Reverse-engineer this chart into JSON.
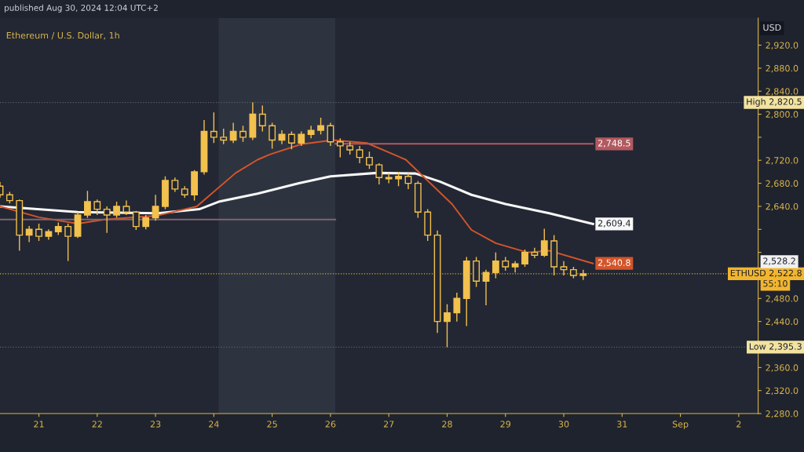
{
  "chart_data": {
    "type": "candlestick",
    "title": "Ethereum / U.S. Dollar, 1h",
    "ylabel": "USD",
    "annotations": [
      "published Aug 30, 2024 12:04 UTC+2",
      "2,528.2",
      "55:10"
    ],
    "color": "#f2c14e",
    "x": [
      "2024-08-20T08:00",
      "2024-08-20T12:00",
      "2024-08-20T16:00",
      "2024-08-20T20:00",
      "2024-08-21T00:00",
      "2024-08-21T04:00",
      "2024-08-21T08:00",
      "2024-08-21T12:00",
      "2024-08-21T16:00",
      "2024-08-21T20:00",
      "2024-08-22T00:00",
      "2024-08-22T04:00",
      "2024-08-22T08:00",
      "2024-08-22T12:00",
      "2024-08-22T16:00",
      "2024-08-22T20:00",
      "2024-08-23T00:00",
      "2024-08-23T04:00",
      "2024-08-23T08:00",
      "2024-08-23T12:00",
      "2024-08-23T16:00",
      "2024-08-23T20:00",
      "2024-08-24T00:00",
      "2024-08-24T04:00",
      "2024-08-24T08:00",
      "2024-08-24T12:00",
      "2024-08-24T16:00",
      "2024-08-24T20:00",
      "2024-08-25T00:00",
      "2024-08-25T04:00",
      "2024-08-25T08:00",
      "2024-08-25T12:00",
      "2024-08-25T16:00",
      "2024-08-25T20:00",
      "2024-08-26T00:00",
      "2024-08-26T04:00",
      "2024-08-26T08:00",
      "2024-08-26T12:00",
      "2024-08-26T16:00",
      "2024-08-26T20:00",
      "2024-08-27T00:00",
      "2024-08-27T04:00",
      "2024-08-27T08:00",
      "2024-08-27T12:00",
      "2024-08-27T16:00",
      "2024-08-27T20:00",
      "2024-08-28T00:00",
      "2024-08-28T04:00",
      "2024-08-28T08:00",
      "2024-08-28T12:00",
      "2024-08-28T16:00",
      "2024-08-28T20:00",
      "2024-08-29T00:00",
      "2024-08-29T04:00",
      "2024-08-29T08:00",
      "2024-08-29T12:00",
      "2024-08-29T16:00",
      "2024-08-29T20:00",
      "2024-08-30T00:00",
      "2024-08-30T04:00",
      "2024-08-30T08:00"
    ],
    "ohlc": [
      [
        2675,
        2682,
        2655,
        2660
      ],
      [
        2660,
        2665,
        2645,
        2650
      ],
      [
        2650,
        2652,
        2563,
        2590
      ],
      [
        2590,
        2606,
        2578,
        2600
      ],
      [
        2600,
        2610,
        2580,
        2588
      ],
      [
        2588,
        2600,
        2582,
        2596
      ],
      [
        2596,
        2612,
        2590,
        2605
      ],
      [
        2605,
        2610,
        2545,
        2588
      ],
      [
        2588,
        2630,
        2585,
        2625
      ],
      [
        2625,
        2667,
        2620,
        2648
      ],
      [
        2648,
        2652,
        2625,
        2635
      ],
      [
        2635,
        2640,
        2594,
        2625
      ],
      [
        2625,
        2648,
        2620,
        2640
      ],
      [
        2640,
        2650,
        2625,
        2630
      ],
      [
        2630,
        2632,
        2599,
        2605
      ],
      [
        2605,
        2625,
        2600,
        2620
      ],
      [
        2620,
        2660,
        2615,
        2640
      ],
      [
        2640,
        2692,
        2635,
        2685
      ],
      [
        2685,
        2690,
        2665,
        2670
      ],
      [
        2670,
        2675,
        2655,
        2660
      ],
      [
        2660,
        2703,
        2650,
        2700
      ],
      [
        2700,
        2790,
        2695,
        2770
      ],
      [
        2770,
        2803,
        2750,
        2760
      ],
      [
        2760,
        2775,
        2748,
        2755
      ],
      [
        2755,
        2785,
        2750,
        2770
      ],
      [
        2770,
        2780,
        2752,
        2760
      ],
      [
        2760,
        2820.5,
        2755,
        2800
      ],
      [
        2800,
        2815,
        2770,
        2780
      ],
      [
        2780,
        2785,
        2740,
        2755
      ],
      [
        2755,
        2772,
        2748,
        2765
      ],
      [
        2765,
        2770,
        2739,
        2750
      ],
      [
        2750,
        2770,
        2745,
        2765
      ],
      [
        2765,
        2780,
        2758,
        2772
      ],
      [
        2772,
        2794,
        2765,
        2780
      ],
      [
        2780,
        2785,
        2745,
        2752
      ],
      [
        2752,
        2758,
        2725,
        2745
      ],
      [
        2745,
        2752,
        2730,
        2738
      ],
      [
        2738,
        2745,
        2715,
        2725
      ],
      [
        2725,
        2735,
        2705,
        2712
      ],
      [
        2712,
        2715,
        2678,
        2690
      ],
      [
        2690,
        2698,
        2680,
        2688
      ],
      [
        2688,
        2700,
        2675,
        2692
      ],
      [
        2692,
        2698,
        2670,
        2680
      ],
      [
        2680,
        2684,
        2620,
        2630
      ],
      [
        2630,
        2635,
        2580,
        2590
      ],
      [
        2590,
        2598,
        2420,
        2440
      ],
      [
        2440,
        2470,
        2395.3,
        2455
      ],
      [
        2455,
        2490,
        2440,
        2480
      ],
      [
        2480,
        2552,
        2432,
        2545
      ],
      [
        2545,
        2552,
        2500,
        2510
      ],
      [
        2510,
        2530,
        2468,
        2525
      ],
      [
        2525,
        2560,
        2515,
        2545
      ],
      [
        2545,
        2552,
        2528,
        2535
      ],
      [
        2535,
        2545,
        2525,
        2540
      ],
      [
        2540,
        2565,
        2535,
        2560
      ],
      [
        2560,
        2568,
        2550,
        2555
      ],
      [
        2555,
        2601,
        2552,
        2580
      ],
      [
        2580,
        2590,
        2520,
        2535
      ],
      [
        2535,
        2545,
        2520,
        2530
      ],
      [
        2530,
        2535,
        2515,
        2520
      ],
      [
        2520,
        2530,
        2512,
        2522.8
      ]
    ],
    "series": [
      {
        "type": "line",
        "color": "#f7f7f7",
        "x": [
          "2024-08-20T08:00",
          "2024-08-21T16:00",
          "2024-08-23T01:00",
          "2024-08-23T18:00",
          "2024-08-24T02:00",
          "2024-08-24T18:00",
          "2024-08-25T11:00",
          "2024-08-26T00:00",
          "2024-08-26T19:00",
          "2024-08-27T11:00",
          "2024-08-27T21:00",
          "2024-08-28T10:00",
          "2024-08-29T00:00",
          "2024-08-29T18:00",
          "2024-08-30T12:00"
        ],
        "values": [
          2640,
          2630,
          2628,
          2635,
          2648,
          2662,
          2680,
          2692,
          2698,
          2697,
          2683,
          2660,
          2644,
          2628,
          2609.4
        ],
        "value_labels": [
          null,
          null,
          null,
          null,
          null,
          null,
          null,
          null,
          null,
          null,
          null,
          null,
          null,
          null,
          "2,609.4"
        ]
      },
      {
        "type": "line",
        "color": "#d4552a",
        "x": [
          "2024-08-20T08:00",
          "2024-08-21T00:00",
          "2024-08-21T16:00",
          "2024-08-22T03:00",
          "2024-08-23T01:00",
          "2024-08-23T17:00",
          "2024-08-24T09:00",
          "2024-08-24T18:00",
          "2024-08-24T23:00",
          "2024-08-25T12:00",
          "2024-08-26T01:00",
          "2024-08-26T15:00",
          "2024-08-27T07:00",
          "2024-08-28T02:00",
          "2024-08-28T10:00",
          "2024-08-28T20:00",
          "2024-08-29T09:00",
          "2024-08-29T18:00",
          "2024-08-30T12:00"
        ],
        "values": [
          2640,
          2621,
          2610,
          2617,
          2624,
          2640,
          2698,
          2721,
          2730,
          2748,
          2755,
          2750,
          2721,
          2644,
          2599,
          2576,
          2560,
          2563,
          2540.8
        ],
        "value_labels": [
          null,
          null,
          null,
          null,
          null,
          null,
          null,
          null,
          null,
          null,
          null,
          null,
          null,
          null,
          null,
          null,
          null,
          null,
          "2,540.8"
        ]
      },
      {
        "type": "line",
        "color": "#b25a60",
        "x": [
          "2024-08-26T02:00",
          "2024-08-30T12:00"
        ],
        "values": [
          2748.5,
          2748.5
        ],
        "value_labels": [
          null,
          "2,748.5"
        ]
      },
      {
        "type": "line",
        "color": "#7d6470",
        "x": [
          "2024-08-20T08:00",
          "2024-08-26T02:00"
        ],
        "values": [
          2617,
          2617
        ]
      }
    ],
    "ref_lines": [
      {
        "axis": "y",
        "value": 2820.5,
        "label": "High 2,820.5",
        "color": "#5a5f6b",
        "line_style": "dotted"
      },
      {
        "axis": "y",
        "value": 2395.3,
        "label": "Low 2,395.3",
        "color": "#5a5f6b",
        "line_style": "dotted"
      },
      {
        "axis": "y",
        "value": 2522.8,
        "label": "ETHUSD 2,522.8",
        "color": "#d9a72e",
        "line_style": "dotted"
      }
    ],
    "bands": [
      {
        "axis": "x",
        "from": "2024-08-24T02:00",
        "to": "2024-08-26T02:00",
        "color": "#2e3340"
      }
    ],
    "xlim": [
      "2024-08-20T08:00",
      "2024-09-02T08:00"
    ],
    "xticks": [
      {
        "value": "2024-08-21",
        "label": "21"
      },
      {
        "value": "2024-08-22",
        "label": "22"
      },
      {
        "value": "2024-08-23",
        "label": "23"
      },
      {
        "value": "2024-08-24",
        "label": "24"
      },
      {
        "value": "2024-08-25",
        "label": "25"
      },
      {
        "value": "2024-08-26",
        "label": "26"
      },
      {
        "value": "2024-08-27",
        "label": "27"
      },
      {
        "value": "2024-08-28",
        "label": "28"
      },
      {
        "value": "2024-08-29",
        "label": "29"
      },
      {
        "value": "2024-08-30",
        "label": "30"
      },
      {
        "value": "2024-08-31",
        "label": "31"
      },
      {
        "value": "2024-09-01",
        "label": "Sep"
      },
      {
        "value": "2024-09-02",
        "label": "2"
      }
    ],
    "ylim": [
      2280,
      2967
    ],
    "yticks": [
      {
        "value": 2280,
        "label": "2,280.0"
      },
      {
        "value": 2320,
        "label": "2,320.0"
      },
      {
        "value": 2360,
        "label": "2,360.0"
      },
      {
        "value": 2400,
        "label": null
      },
      {
        "value": 2440,
        "label": "2,440.0"
      },
      {
        "value": 2480,
        "label": "2,480.0"
      },
      {
        "value": 2520,
        "label": null
      },
      {
        "value": 2560,
        "label": null
      },
      {
        "value": 2600,
        "label": null
      },
      {
        "value": 2640,
        "label": "2,640.0"
      },
      {
        "value": 2680,
        "label": "2,680.0"
      },
      {
        "value": 2720,
        "label": "2,720.0"
      },
      {
        "value": 2760,
        "label": null
      },
      {
        "value": 2800,
        "label": "2,800.0"
      },
      {
        "value": 2840,
        "label": "2,840.0"
      },
      {
        "value": 2880,
        "label": "2,880.0"
      },
      {
        "value": 2920,
        "label": "2,920.0"
      }
    ],
    "grid": false,
    "legend": false
  }
}
